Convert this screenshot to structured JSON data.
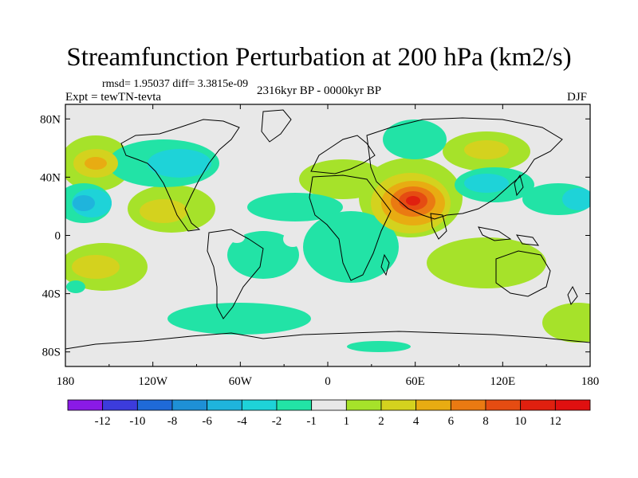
{
  "title": "Streamfunction Perturbation at 200 hPa (km2/s)",
  "stats_line": "rmsd= 1.95037 diff= 3.3815e-09",
  "experiment": "Expt = tewTN-tevta",
  "period": "2316kyr BP - 0000kyr BP",
  "season": "DJF",
  "chart_data": {
    "type": "heatmap",
    "title": "Streamfunction Perturbation at 200 hPa (km2/s)",
    "x_range": [
      -180,
      180
    ],
    "y_range": [
      -90,
      90
    ],
    "x_ticks": [
      {
        "value": -180,
        "label": "180"
      },
      {
        "value": -120,
        "label": "120W"
      },
      {
        "value": -60,
        "label": "60W"
      },
      {
        "value": 0,
        "label": "0"
      },
      {
        "value": 60,
        "label": "60E"
      },
      {
        "value": 120,
        "label": "120E"
      },
      {
        "value": 180,
        "label": "180"
      }
    ],
    "y_ticks": [
      {
        "value": 80,
        "label": "80N"
      },
      {
        "value": 40,
        "label": "40N"
      },
      {
        "value": 0,
        "label": "0"
      },
      {
        "value": -40,
        "label": "40S"
      },
      {
        "value": -80,
        "label": "80S"
      }
    ],
    "levels": [
      -12,
      -10,
      -8,
      -6,
      -4,
      -2,
      -1,
      1,
      2,
      4,
      6,
      8,
      10,
      12
    ],
    "level_labels": [
      "-12",
      "-10",
      "-8",
      "-6",
      "-4",
      "-2",
      "-1",
      "1",
      "2",
      "4",
      "6",
      "8",
      "10",
      "12"
    ],
    "colors": [
      "#8a1ae6",
      "#3c3cdc",
      "#1f6ad8",
      "#1e90d6",
      "#1fb4dc",
      "#1ed3d8",
      "#22e3a6",
      "#e8e8e8",
      "#a6e22a",
      "#d4d21e",
      "#e8ac12",
      "#ea7a12",
      "#e54c12",
      "#e0200f",
      "#e01010"
    ],
    "features": [
      {
        "name": "Middle East high",
        "lon": 55,
        "lat": 28,
        "value": 11
      },
      {
        "name": "Central Pacific low",
        "lon": -168,
        "lat": 20,
        "value": -6
      },
      {
        "name": "North America low",
        "lon": -95,
        "lat": 50,
        "value": -4
      },
      {
        "name": "Tropical Pacific high",
        "lon": -140,
        "lat": 10,
        "value": 3
      },
      {
        "name": "North Pacific high",
        "lon": -165,
        "lat": 55,
        "value": 4
      },
      {
        "name": "Asia ridge",
        "lon": 100,
        "lat": 58,
        "value": 4
      },
      {
        "name": "Central Asia low",
        "lon": 100,
        "lat": 30,
        "value": -4
      },
      {
        "name": "South Pacific high",
        "lon": -150,
        "lat": -20,
        "value": 4
      },
      {
        "name": "Southern Ocean high",
        "lon": 90,
        "lat": -30,
        "value": 3
      }
    ]
  }
}
